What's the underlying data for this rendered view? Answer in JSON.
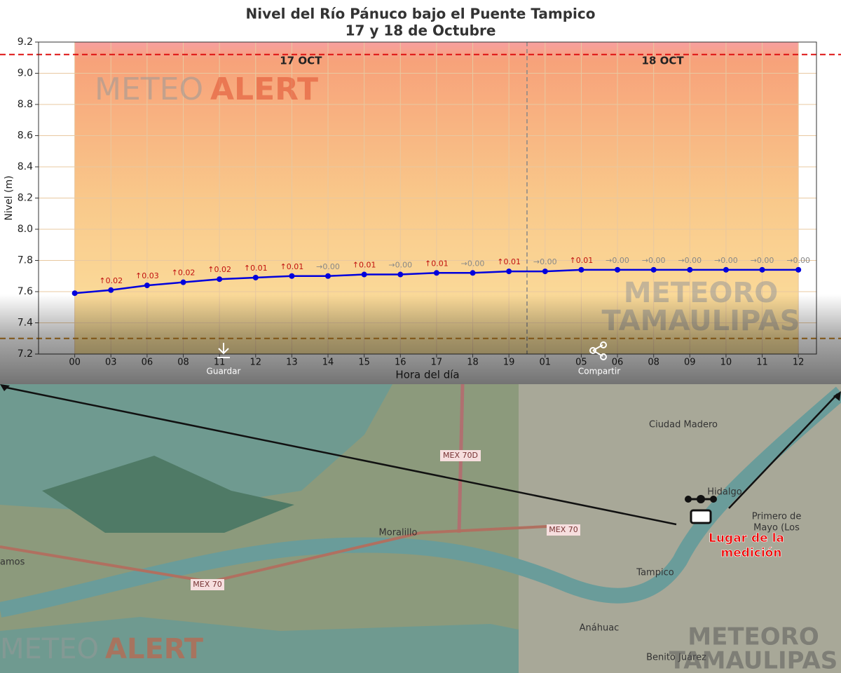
{
  "chart_data": {
    "type": "line",
    "title": "Nivel del Río Pánuco bajo el Puente Tampico",
    "subtitle": "17 y 18 de Octubre",
    "y_label": "Nivel (m)",
    "x_label": "Hora del día",
    "categories": [
      "00",
      "03",
      "06",
      "08",
      "11",
      "12",
      "13",
      "14",
      "15",
      "16",
      "17",
      "18",
      "19",
      "01",
      "05",
      "06",
      "08",
      "09",
      "10",
      "11",
      "12"
    ],
    "values": [
      7.59,
      7.61,
      7.64,
      7.66,
      7.68,
      7.69,
      7.7,
      7.7,
      7.71,
      7.71,
      7.72,
      7.72,
      7.73,
      7.73,
      7.74,
      7.74,
      7.74,
      7.74,
      7.74,
      7.74,
      7.74
    ],
    "change_labels": [
      null,
      "↑0.02",
      "↑0.03",
      "↑0.02",
      "↑0.02",
      "↑0.01",
      "↑0.01",
      "→0.00",
      "↑0.01",
      "→0.00",
      "↑0.01",
      "→0.00",
      "↑0.01",
      "→0.00",
      "↑0.01",
      "→0.00",
      "→0.00",
      "→0.00",
      "→0.00",
      "→0.00",
      "→0.00"
    ],
    "color": "#0000dd",
    "day_labels": [
      "17 OCT",
      "18 OCT"
    ],
    "hlines": [
      {
        "value": 9.12,
        "color": "#dd1111"
      },
      {
        "value": 7.3,
        "color": "#c08020"
      }
    ],
    "ylim": [
      7.2,
      9.2
    ],
    "yticks": [
      7.2,
      7.4,
      7.6,
      7.8,
      {
        "value": 8,
        "label": "8.0"
      },
      8.2,
      8.4,
      8.6,
      8.8,
      {
        "value": 9,
        "label": "9.0"
      },
      9.2
    ],
    "grid": true
  },
  "watermarks": {
    "meteo": "METEO",
    "alert": "ALERT",
    "tam1": "METEORO",
    "tam2": "TAMAULIPAS"
  },
  "ui": {
    "save": "Guardar",
    "share": "Compartir"
  },
  "map": {
    "labels": [
      "Ciudad Madero",
      "Tampico",
      "Moralillo",
      "MEX 70D",
      "MEX 70",
      "MEX 70",
      "Hidalgo",
      "Anáhuac",
      "Benito Juárez",
      "Primero de",
      "Mayo (Los",
      "amos"
    ],
    "marker": [
      "Lugar de la",
      "medición"
    ]
  }
}
